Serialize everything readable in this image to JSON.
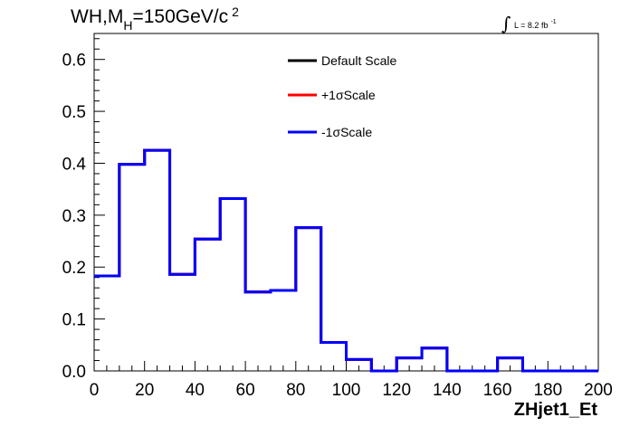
{
  "chart_data": {
    "type": "line",
    "style": "step-histogram",
    "title": {
      "prefix": "WH,M",
      "subscript": "H",
      "value": "=150GeV/c",
      "superscript": "2"
    },
    "lumi": {
      "integral": "∫",
      "text": "L = 8.2 fb",
      "superscript": "-1"
    },
    "xlabel": "ZHjet1_Et",
    "ylabel": "",
    "xlim": [
      0,
      200
    ],
    "ylim": [
      0,
      0.65
    ],
    "x_ticks": [
      0,
      20,
      40,
      60,
      80,
      100,
      120,
      140,
      160,
      180,
      200
    ],
    "x_tick_labels": [
      "0",
      "20",
      "40",
      "60",
      "80",
      "100",
      "120",
      "140",
      "160",
      "180",
      "200"
    ],
    "y_ticks": [
      0,
      0.1,
      0.2,
      0.3,
      0.4,
      0.5,
      0.6
    ],
    "y_tick_labels": [
      "0.0",
      "0.1",
      "0.2",
      "0.3",
      "0.4",
      "0.5",
      "0.6"
    ],
    "bin_edges": [
      0,
      10,
      20,
      30,
      40,
      50,
      60,
      70,
      80,
      90,
      100,
      110,
      120,
      130,
      140,
      150,
      160,
      170,
      180,
      190,
      200
    ],
    "grid": false,
    "legend_position": "top-center",
    "series": [
      {
        "name": "Default Scale",
        "color": "#000000",
        "values": [
          0.183,
          0.398,
          0.425,
          0.186,
          0.254,
          0.332,
          0.152,
          0.155,
          0.276,
          0.055,
          0.022,
          0.0,
          0.025,
          0.044,
          0.0,
          0.0,
          0.025,
          0.0,
          0.0,
          0.0
        ]
      },
      {
        "name": "+1σScale",
        "color": "#ff0000",
        "values": [
          0.183,
          0.398,
          0.425,
          0.186,
          0.254,
          0.332,
          0.152,
          0.155,
          0.276,
          0.055,
          0.022,
          0.0,
          0.025,
          0.044,
          0.0,
          0.0,
          0.025,
          0.0,
          0.0,
          0.0
        ]
      },
      {
        "name": "-1σScale",
        "color": "#0000ff",
        "values": [
          0.183,
          0.398,
          0.425,
          0.186,
          0.254,
          0.332,
          0.152,
          0.155,
          0.276,
          0.055,
          0.022,
          0.0,
          0.025,
          0.044,
          0.0,
          0.0,
          0.025,
          0.0,
          0.0,
          0.0
        ]
      }
    ]
  }
}
